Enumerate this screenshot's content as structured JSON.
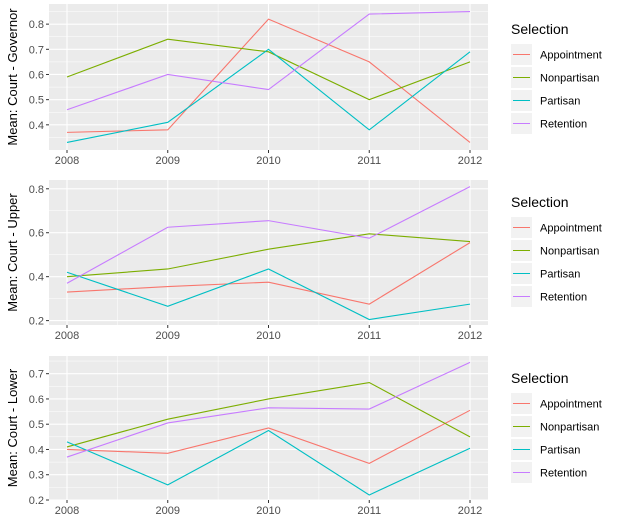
{
  "colors": {
    "Appointment": "#F8766D",
    "Nonpartisan": "#7CAE00",
    "Partisan": "#00BFC4",
    "Retention": "#C77CFF",
    "panel_background": "#EBEBEB",
    "grid": "#FFFFFF"
  },
  "chart_data": [
    {
      "type": "line",
      "x": [
        2008,
        2009,
        2010,
        2011,
        2012
      ],
      "x_ticks": [
        "2008",
        "2009",
        "2010",
        "2011",
        "2012"
      ],
      "ylabel": "Mean: Court - Governor",
      "ylim": [
        0.3,
        0.88
      ],
      "y_ticks": [
        0.4,
        0.5,
        0.6,
        0.7,
        0.8
      ],
      "y_tick_labels": [
        "0.4",
        "0.5",
        "0.6",
        "0.7",
        "0.8"
      ],
      "grid": true,
      "legend": {
        "title": "Selection",
        "position": "right"
      },
      "series": [
        {
          "name": "Appointment",
          "values": [
            0.37,
            0.38,
            0.82,
            0.65,
            0.33
          ]
        },
        {
          "name": "Nonpartisan",
          "values": [
            0.59,
            0.74,
            0.69,
            0.5,
            0.65
          ]
        },
        {
          "name": "Partisan",
          "values": [
            0.33,
            0.41,
            0.7,
            0.38,
            0.69
          ]
        },
        {
          "name": "Retention",
          "values": [
            0.46,
            0.6,
            0.54,
            0.84,
            0.85
          ]
        }
      ]
    },
    {
      "type": "line",
      "x": [
        2008,
        2009,
        2010,
        2011,
        2012
      ],
      "x_ticks": [
        "2008",
        "2009",
        "2010",
        "2011",
        "2012"
      ],
      "ylabel": "Mean: Court - Upper",
      "ylim": [
        0.18,
        0.84
      ],
      "y_ticks": [
        0.2,
        0.4,
        0.6,
        0.8
      ],
      "y_tick_labels": [
        "0.2",
        "0.4",
        "0.6",
        "0.8"
      ],
      "grid": true,
      "legend": {
        "title": "Selection",
        "position": "right"
      },
      "series": [
        {
          "name": "Appointment",
          "values": [
            0.33,
            0.355,
            0.375,
            0.275,
            0.555
          ]
        },
        {
          "name": "Nonpartisan",
          "values": [
            0.4,
            0.435,
            0.525,
            0.595,
            0.56
          ]
        },
        {
          "name": "Partisan",
          "values": [
            0.42,
            0.265,
            0.435,
            0.205,
            0.275
          ]
        },
        {
          "name": "Retention",
          "values": [
            0.37,
            0.625,
            0.655,
            0.575,
            0.81
          ]
        }
      ]
    },
    {
      "type": "line",
      "x": [
        2008,
        2009,
        2010,
        2011,
        2012
      ],
      "x_ticks": [
        "2008",
        "2009",
        "2010",
        "2011",
        "2012"
      ],
      "ylabel": "Mean: Court - Lower",
      "ylim": [
        0.2,
        0.77
      ],
      "y_ticks": [
        0.2,
        0.3,
        0.4,
        0.5,
        0.6,
        0.7
      ],
      "y_tick_labels": [
        "0.2",
        "0.3",
        "0.4",
        "0.5",
        "0.6",
        "0.7"
      ],
      "grid": true,
      "legend": {
        "title": "Selection",
        "position": "right"
      },
      "series": [
        {
          "name": "Appointment",
          "values": [
            0.4,
            0.385,
            0.485,
            0.345,
            0.555
          ]
        },
        {
          "name": "Nonpartisan",
          "values": [
            0.41,
            0.52,
            0.6,
            0.665,
            0.45
          ]
        },
        {
          "name": "Partisan",
          "values": [
            0.43,
            0.26,
            0.475,
            0.22,
            0.405
          ]
        },
        {
          "name": "Retention",
          "values": [
            0.37,
            0.505,
            0.565,
            0.56,
            0.745
          ]
        }
      ]
    }
  ]
}
